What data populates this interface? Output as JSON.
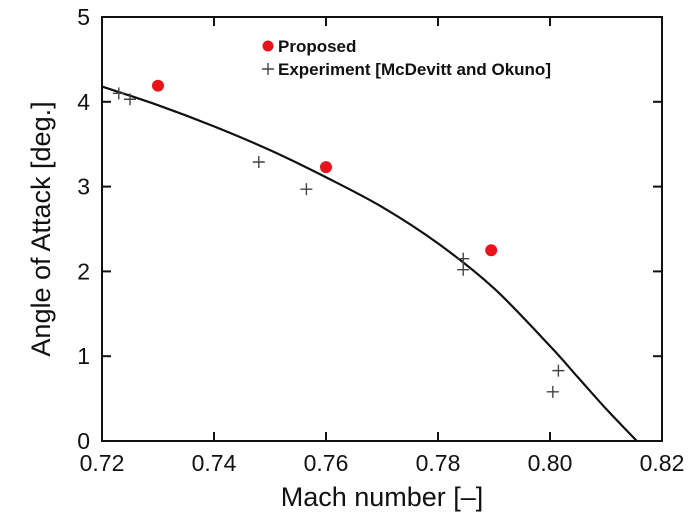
{
  "chart_data": {
    "type": "scatter",
    "xlabel": "Mach number [–]",
    "ylabel": "Angle of Attack [deg.]",
    "xlim": [
      0.72,
      0.82
    ],
    "ylim": [
      0,
      5
    ],
    "xticks": [
      0.72,
      0.74,
      0.76,
      0.78,
      0.8,
      0.82
    ],
    "xtick_labels": [
      "0.72",
      "0.74",
      "0.76",
      "0.78",
      "0.80",
      "0.82"
    ],
    "yticks": [
      0,
      1,
      2,
      3,
      4,
      5
    ],
    "ytick_labels": [
      "0",
      "1",
      "2",
      "3",
      "4",
      "5"
    ],
    "grid": false,
    "legend_position": "top-right",
    "series": [
      {
        "name": "Proposed",
        "marker": "circle",
        "color": "#e8141c",
        "points": [
          [
            0.73,
            4.19
          ],
          [
            0.76,
            3.23
          ],
          [
            0.7895,
            2.25
          ]
        ]
      },
      {
        "name": "Experiment [McDevitt and Okuno]",
        "marker": "plus",
        "color": "#444444",
        "points": [
          [
            0.723,
            4.1
          ],
          [
            0.725,
            4.03
          ],
          [
            0.748,
            3.29
          ],
          [
            0.7565,
            2.97
          ],
          [
            0.7845,
            2.15
          ],
          [
            0.7845,
            2.02
          ],
          [
            0.8005,
            0.58
          ],
          [
            0.8015,
            0.83
          ]
        ]
      }
    ],
    "fit_curve": {
      "color": "#111111",
      "points": [
        [
          0.72,
          4.18
        ],
        [
          0.73,
          3.96
        ],
        [
          0.74,
          3.71
        ],
        [
          0.75,
          3.43
        ],
        [
          0.76,
          3.11
        ],
        [
          0.77,
          2.76
        ],
        [
          0.78,
          2.33
        ],
        [
          0.79,
          1.8
        ],
        [
          0.8,
          1.12
        ],
        [
          0.805,
          0.75
        ],
        [
          0.81,
          0.38
        ],
        [
          0.8155,
          0.0
        ]
      ]
    }
  }
}
